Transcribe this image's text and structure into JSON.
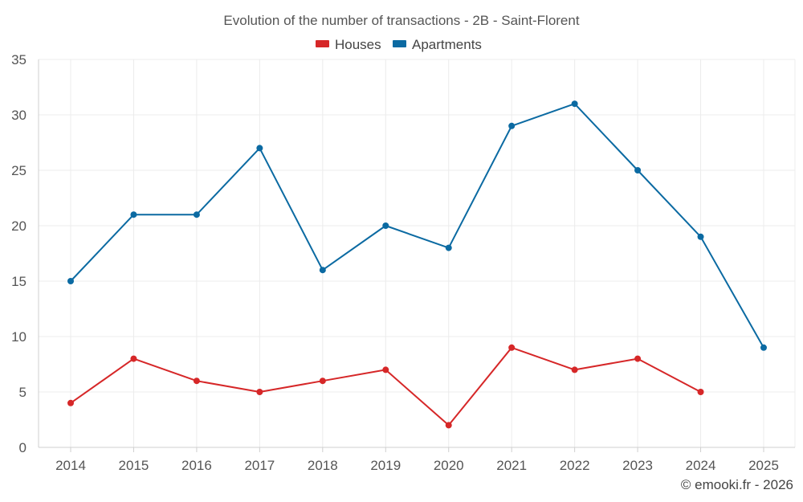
{
  "chart_data": {
    "type": "line",
    "title": "Evolution of the number of transactions - 2B - Saint-Florent",
    "xlabel": "",
    "ylabel": "",
    "categories": [
      "2014",
      "2015",
      "2016",
      "2017",
      "2018",
      "2019",
      "2020",
      "2021",
      "2022",
      "2023",
      "2024",
      "2025"
    ],
    "ylim": [
      0,
      35
    ],
    "yticks": [
      "0",
      "5",
      "10",
      "15",
      "20",
      "25",
      "30",
      "35"
    ],
    "grid": true,
    "legend_position": "top-center",
    "series": [
      {
        "name": "Houses",
        "color": "#d62728",
        "values": [
          4,
          8,
          6,
          5,
          6,
          7,
          2,
          9,
          7,
          8,
          5,
          null
        ]
      },
      {
        "name": "Apartments",
        "color": "#0b6aa2",
        "values": [
          15,
          21,
          21,
          27,
          16,
          20,
          18,
          29,
          31,
          25,
          19,
          9
        ]
      }
    ]
  },
  "credit": "© emooki.fr - 2026"
}
